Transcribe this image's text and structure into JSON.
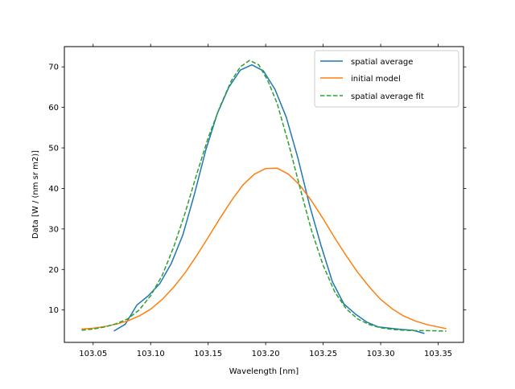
{
  "chart_data": {
    "type": "line",
    "title": "",
    "xlabel": "Wavelength [nm]",
    "ylabel": "Data [W / (nm sr m2)]",
    "xlim": [
      103.025,
      103.372
    ],
    "ylim": [
      2,
      75
    ],
    "xticks": [
      103.05,
      103.1,
      103.15,
      103.2,
      103.25,
      103.3,
      103.35
    ],
    "xtick_labels": [
      "103.05",
      "103.10",
      "103.15",
      "103.20",
      "103.25",
      "103.30",
      "103.35"
    ],
    "yticks": [
      10,
      20,
      30,
      40,
      50,
      60,
      70
    ],
    "ytick_labels": [
      "10",
      "20",
      "30",
      "40",
      "50",
      "60",
      "70"
    ],
    "grid": false,
    "legend": {
      "placement": "top-right"
    },
    "series": [
      {
        "name": "spatial average",
        "color": "#1f77b4",
        "style": "solid",
        "x": [
          103.068,
          103.078,
          103.088,
          103.098,
          103.108,
          103.118,
          103.128,
          103.138,
          103.148,
          103.158,
          103.168,
          103.178,
          103.188,
          103.198,
          103.208,
          103.218,
          103.228,
          103.238,
          103.248,
          103.258,
          103.268,
          103.278,
          103.288,
          103.298,
          103.308,
          103.318,
          103.328,
          103.338
        ],
        "y": [
          4.8,
          6.5,
          11.2,
          13.5,
          16.5,
          21.5,
          28.5,
          38.5,
          49.5,
          58.5,
          65.0,
          69.2,
          70.5,
          69.0,
          64.5,
          57.5,
          47.5,
          36.0,
          26.0,
          17.0,
          11.5,
          9.0,
          7.0,
          5.8,
          5.5,
          5.2,
          5.0,
          4.2
        ]
      },
      {
        "name": "initial model",
        "color": "#ff7f0e",
        "style": "solid",
        "x": [
          103.04,
          103.05,
          103.06,
          103.07,
          103.08,
          103.09,
          103.1,
          103.11,
          103.12,
          103.13,
          103.14,
          103.15,
          103.16,
          103.17,
          103.18,
          103.19,
          103.2,
          103.21,
          103.22,
          103.23,
          103.24,
          103.25,
          103.26,
          103.27,
          103.28,
          103.29,
          103.3,
          103.31,
          103.32,
          103.33,
          103.34,
          103.35,
          103.357
        ],
        "y": [
          5.3,
          5.5,
          5.9,
          6.5,
          7.3,
          8.5,
          10.2,
          12.6,
          15.6,
          19.2,
          23.4,
          27.9,
          32.5,
          36.9,
          40.8,
          43.5,
          44.9,
          45.0,
          43.5,
          40.7,
          36.9,
          32.5,
          27.8,
          23.4,
          19.3,
          15.7,
          12.6,
          10.3,
          8.5,
          7.3,
          6.4,
          5.8,
          5.4
        ]
      },
      {
        "name": "spatial average fit",
        "color": "#2ca02c",
        "style": "dashed",
        "x": [
          103.04,
          103.05,
          103.06,
          103.07,
          103.08,
          103.09,
          103.1,
          103.11,
          103.12,
          103.13,
          103.14,
          103.15,
          103.16,
          103.17,
          103.178,
          103.186,
          103.194,
          103.202,
          103.21,
          103.22,
          103.23,
          103.24,
          103.25,
          103.26,
          103.27,
          103.28,
          103.29,
          103.3,
          103.31,
          103.32,
          103.33,
          103.34,
          103.357
        ],
        "y": [
          5.0,
          5.3,
          5.8,
          6.6,
          7.8,
          10.0,
          13.5,
          18.5,
          25.5,
          34.0,
          43.5,
          52.5,
          60.0,
          66.5,
          70.0,
          71.6,
          70.5,
          66.5,
          61.0,
          51.0,
          40.0,
          29.5,
          21.0,
          14.5,
          10.3,
          7.8,
          6.4,
          5.6,
          5.2,
          5.0,
          4.9,
          4.9,
          4.8
        ]
      }
    ]
  }
}
